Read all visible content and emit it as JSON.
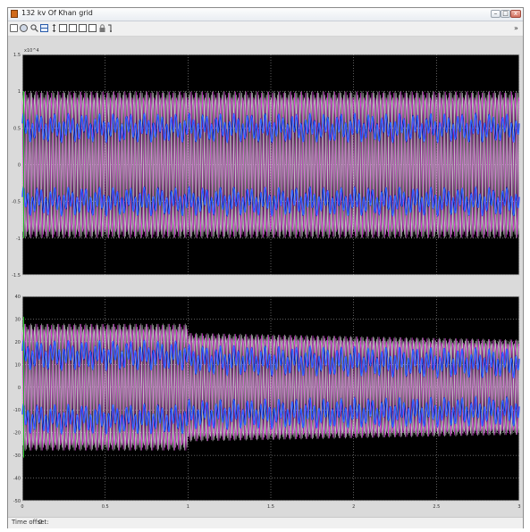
{
  "window": {
    "title": "132 kv Of Khan grid",
    "icon": "scope-icon",
    "controls": {
      "minimize": "–",
      "maximize": "□",
      "close": "x"
    }
  },
  "toolbar": {
    "buttons": [
      {
        "name": "print-icon"
      },
      {
        "name": "parameters-icon"
      },
      {
        "name": "zoom-icon"
      },
      {
        "name": "zoom-x-icon"
      },
      {
        "name": "zoom-y-icon"
      },
      {
        "name": "autoscale-icon"
      },
      {
        "name": "save-axes-icon"
      },
      {
        "name": "restore-axes-icon"
      },
      {
        "name": "floating-scope-icon"
      },
      {
        "name": "lock-axes-icon"
      },
      {
        "name": "signal-selector-icon"
      }
    ],
    "overflow": "»"
  },
  "scope": {
    "background": "#000000",
    "frame_color": "#cfcfcf",
    "grid_color": "#bdbdbd",
    "series_colors": [
      "#d9d9d9",
      "#ff3cff",
      "#2aa7ff",
      "#2a2aff",
      "#20c020"
    ],
    "upper": {
      "exponent": "x10^4",
      "y_min": -1.5,
      "y_max": 1.5,
      "y_ticks": [
        {
          "v": 1.5,
          "label": "1.5"
        },
        {
          "v": 1,
          "label": "1"
        },
        {
          "v": 0.5,
          "label": "0.5"
        },
        {
          "v": 0,
          "label": "0"
        },
        {
          "v": -0.5,
          "label": "-0.5"
        },
        {
          "v": -1,
          "label": "-1"
        },
        {
          "v": -1.5,
          "label": "-1.5"
        }
      ],
      "amplitude": 1.0,
      "inner_band": 0.5
    },
    "lower": {
      "y_min": -50,
      "y_max": 40,
      "y_ticks": [
        {
          "v": 40,
          "label": "40"
        },
        {
          "v": 30,
          "label": "30"
        },
        {
          "v": 20,
          "label": "20"
        },
        {
          "v": 10,
          "label": "10"
        },
        {
          "v": 0,
          "label": "0"
        },
        {
          "v": -10,
          "label": "-10"
        },
        {
          "v": -20,
          "label": "-20"
        },
        {
          "v": -30,
          "label": "-30"
        },
        {
          "v": -40,
          "label": "-40"
        },
        {
          "v": -50,
          "label": "-50"
        }
      ],
      "amp_before": 28,
      "amp_after_start": 24,
      "amp_end": 21,
      "step_time": 1.0,
      "inner_band": 14
    },
    "x_min": 0,
    "x_max": 3,
    "x_ticks": [
      {
        "v": 0,
        "label": "0"
      },
      {
        "v": 0.5,
        "label": "0.5"
      },
      {
        "v": 1,
        "label": "1"
      },
      {
        "v": 1.5,
        "label": "1.5"
      },
      {
        "v": 2,
        "label": "2"
      },
      {
        "v": 2.5,
        "label": "2.5"
      },
      {
        "v": 3,
        "label": "3"
      }
    ]
  },
  "status": {
    "label": "Time offset:",
    "value": "0"
  }
}
